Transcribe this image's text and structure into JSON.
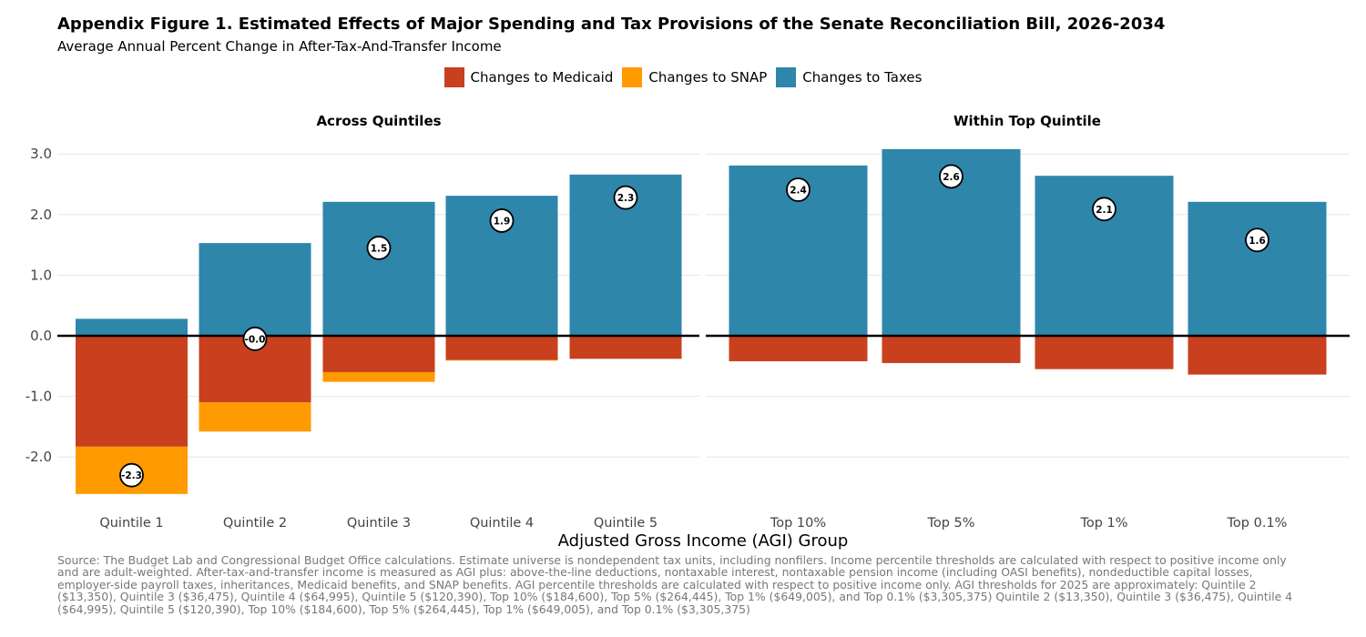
{
  "title": "Appendix Figure 1. Estimated Effects of Major Spending and Tax Provisions of the Senate Reconciliation Bill, 2026-2034",
  "subtitle": "Average Annual Percent Change in After-Tax-And-Transfer Income",
  "source": "Source: The Budget Lab and Congressional Budget Office calculations. Estimate universe is nondependent tax units, including nonfilers. Income percentile thresholds are calculated with respect to positive income only and are adult-weighted. After-tax-and-transfer income is measured as AGI plus: above-the-line deductions, nontaxable interest, nontaxable pension income (including OASI benefits), nondeductible capital losses, employer-side payroll taxes, inheritances, Medicaid benefits, and SNAP benefits. AGI percentile thresholds are calculated with respect to positive income only. AGI thresholds for 2025 are approximately: Quintile 2 ($13,350), Quintile 3 ($36,475), Quintile 4 ($64,995), Quintile 5 ($120,390), Top 10% ($184,600), Top 5% ($264,445), Top 1% ($649,005), and Top 0.1% ($3,305,375) Quintile 2 ($13,350), Quintile 3 ($36,475), Quintile 4 ($64,995), Quintile 5 ($120,390), Top 10% ($184,600), Top 5% ($264,445), Top 1% ($649,005), and Top 0.1% ($3,305,375)",
  "legend": [
    {
      "label": "Changes to Medicaid",
      "color": "#C8401E"
    },
    {
      "label": "Changes to SNAP",
      "color": "#FF9A00"
    },
    {
      "label": "Changes to Taxes",
      "color": "#2E86AB"
    }
  ],
  "chart_data": {
    "type": "bar",
    "stacked": true,
    "xlabel": "Adjusted Gross Income (AGI) Group",
    "ylabel": "",
    "ylim": [
      -2.6,
      3.1
    ],
    "yticks": [
      -2.0,
      -1.0,
      0.0,
      1.0,
      2.0,
      3.0
    ],
    "ytick_labels": [
      "-2.0",
      "-1.0",
      "0.0",
      "1.0",
      "2.0",
      "3.0"
    ],
    "grid": true,
    "legend_position": "top",
    "panels": [
      {
        "title": "Across Quintiles",
        "categories": [
          "Quintile 1",
          "Quintile 2",
          "Quintile 3",
          "Quintile 4",
          "Quintile 5"
        ],
        "series": [
          {
            "name": "Changes to Medicaid",
            "values": [
              -1.83,
              -1.1,
              -0.6,
              -0.4,
              -0.38
            ]
          },
          {
            "name": "Changes to SNAP",
            "values": [
              -0.78,
              -0.48,
              -0.16,
              -0.01,
              0.0
            ]
          },
          {
            "name": "Changes to Taxes",
            "values": [
              0.28,
              1.53,
              2.21,
              2.31,
              2.66
            ]
          }
        ],
        "net_labels": [
          "-2.3",
          "-0.0",
          "1.5",
          "1.9",
          "2.3"
        ],
        "net": [
          -2.3,
          -0.05,
          1.45,
          1.9,
          2.28
        ]
      },
      {
        "title": "Within Top Quintile",
        "categories": [
          "Top 10%",
          "Top 5%",
          "Top 1%",
          "Top 0.1%"
        ],
        "series": [
          {
            "name": "Changes to Medicaid",
            "values": [
              -0.42,
              -0.45,
              -0.55,
              -0.64
            ]
          },
          {
            "name": "Changes to SNAP",
            "values": [
              0.0,
              0.0,
              0.0,
              0.0
            ]
          },
          {
            "name": "Changes to Taxes",
            "values": [
              2.81,
              3.08,
              2.64,
              2.21
            ]
          }
        ],
        "net_labels": [
          "2.4",
          "2.6",
          "2.1",
          "1.6"
        ],
        "net": [
          2.41,
          2.63,
          2.09,
          1.58
        ]
      }
    ]
  }
}
